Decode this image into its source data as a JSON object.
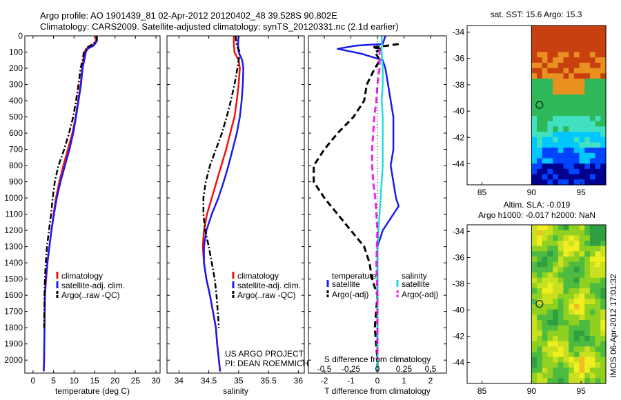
{
  "header": {
    "title_line1": "Argo profile: AO 1901439_81 02-Apr-2012 20120402_48 39.528S 90.802E",
    "title_line2": "Climatology: CARS2009. Satellite-adjusted climatology: synTS_20120331.nc (2.1d earlier)"
  },
  "project": {
    "line1": "US ARGO PROJECT",
    "line2": "PI: DEAN ROEMMICH"
  },
  "stamp": "IMOS 06-Apr-2012 17:01:32",
  "colors": {
    "red": "#ee1111",
    "blue": "#1a1aee",
    "black": "#000000",
    "cyan": "#22dddd",
    "magenta": "#ee22ee"
  },
  "chart_data": [
    {
      "type": "line",
      "id": "temperature",
      "xlabel": "temperature (deg C)",
      "ylabel": "depth",
      "xlim": [
        -2,
        31
      ],
      "ylim": [
        2080,
        0
      ],
      "xticks": [
        0,
        5,
        10,
        15,
        20,
        25,
        30
      ],
      "xtick_labels": [
        "0",
        "5",
        "10",
        "15",
        "20",
        "25",
        "30"
      ],
      "yticks": [
        0,
        100,
        200,
        300,
        400,
        500,
        600,
        700,
        800,
        900,
        1000,
        1100,
        1200,
        1300,
        1400,
        1500,
        1600,
        1700,
        1800,
        1900,
        2000
      ],
      "ytick_labels": [
        "0",
        "100",
        "200",
        "300",
        "400",
        "500",
        "600",
        "700",
        "800",
        "900",
        "1000",
        "1100",
        "1200",
        "1300",
        "1400",
        "1500",
        "1600",
        "1700",
        "1800",
        "1900",
        "2000"
      ],
      "legend": {
        "position": "bottom-right",
        "entries": [
          "climatology",
          "satellite-adj. clim.",
          "Argo(..raw -QC)"
        ]
      },
      "series": [
        {
          "name": "climatology",
          "color": "red",
          "dash": "solid",
          "x": [
            15.3,
            15.4,
            15.2,
            14.5,
            13.0,
            12.6,
            12.3,
            12.0,
            11.6,
            11.0,
            10.4,
            9.6,
            8.5,
            7.4,
            6.4,
            5.6,
            5.0,
            4.5,
            4.0,
            3.5,
            3.2,
            2.9,
            2.8,
            2.7,
            2.6
          ],
          "y": [
            0,
            20,
            40,
            60,
            80,
            100,
            150,
            200,
            300,
            400,
            500,
            600,
            700,
            800,
            900,
            1000,
            1100,
            1200,
            1300,
            1400,
            1500,
            1600,
            1800,
            2000,
            2070
          ]
        },
        {
          "name": "satellite-adj. clim.",
          "color": "blue",
          "dash": "solid",
          "x": [
            15.6,
            15.6,
            15.4,
            14.8,
            13.3,
            12.9,
            12.5,
            12.1,
            11.7,
            11.1,
            10.5,
            9.8,
            8.9,
            7.8,
            6.7,
            5.8,
            5.1,
            4.5,
            4.0,
            3.5,
            3.1,
            2.9,
            2.8,
            2.7,
            2.6
          ],
          "y": [
            0,
            20,
            40,
            60,
            80,
            100,
            150,
            200,
            300,
            400,
            500,
            600,
            700,
            800,
            900,
            1000,
            1100,
            1200,
            1300,
            1400,
            1500,
            1600,
            1800,
            2000,
            2070
          ]
        },
        {
          "name": "Argo(..raw -QC)",
          "color": "black",
          "dash": "dashdot",
          "x": [
            15.5,
            15.6,
            14.6,
            13.3,
            12.4,
            12.1,
            11.6,
            11.1,
            10.5,
            9.8,
            8.8,
            7.6,
            6.2,
            5.3,
            4.8,
            4.4,
            3.9,
            3.4,
            3.1,
            2.9,
            2.8,
            2.7
          ],
          "y": [
            0,
            30,
            50,
            70,
            100,
            150,
            200,
            300,
            400,
            500,
            600,
            700,
            800,
            900,
            1000,
            1100,
            1200,
            1300,
            1400,
            1500,
            1600,
            1800
          ]
        }
      ]
    },
    {
      "type": "line",
      "id": "salinity",
      "xlabel": "salinity",
      "ylabel": "depth",
      "xlim": [
        33.8,
        36.1
      ],
      "ylim": [
        2080,
        0
      ],
      "xticks": [
        34,
        34.5,
        35,
        35.5,
        36
      ],
      "xtick_labels": [
        "34",
        "34.5",
        "35",
        "35.5",
        "36"
      ],
      "legend": {
        "position": "bottom-right",
        "entries": [
          "climatology",
          "satellite-adj. clim.",
          "Argo(..raw -QC)"
        ]
      },
      "series": [
        {
          "name": "climatology",
          "color": "red",
          "dash": "solid",
          "x": [
            34.92,
            34.92,
            34.93,
            35.0,
            35.02,
            35.0,
            34.97,
            34.93,
            34.86,
            34.79,
            34.71,
            34.63,
            34.55,
            34.47,
            34.42,
            34.4,
            34.42,
            34.46,
            34.52,
            34.57,
            34.62,
            34.64,
            34.67,
            34.69
          ],
          "y": [
            0,
            50,
            100,
            150,
            200,
            300,
            400,
            500,
            600,
            700,
            800,
            900,
            1000,
            1100,
            1200,
            1300,
            1400,
            1500,
            1600,
            1700,
            1800,
            1900,
            2000,
            2070
          ]
        },
        {
          "name": "satellite-adj. clim.",
          "color": "blue",
          "dash": "solid",
          "x": [
            35.0,
            34.99,
            35.0,
            35.06,
            35.08,
            35.07,
            35.05,
            35.02,
            34.97,
            34.9,
            34.83,
            34.75,
            34.66,
            34.55,
            34.46,
            34.42,
            34.42,
            34.46,
            34.52,
            34.57,
            34.62,
            34.64,
            34.67,
            34.69
          ],
          "y": [
            0,
            50,
            100,
            150,
            200,
            300,
            400,
            500,
            600,
            700,
            800,
            900,
            1000,
            1100,
            1200,
            1300,
            1400,
            1500,
            1600,
            1700,
            1800,
            1900,
            2000,
            2070
          ]
        },
        {
          "name": "Argo(..raw -QC)",
          "color": "black",
          "dash": "dashdot",
          "x": [
            34.95,
            34.97,
            35.02,
            34.98,
            34.93,
            34.87,
            34.8,
            34.72,
            34.62,
            34.52,
            34.45,
            34.41,
            34.41,
            34.44,
            34.5,
            34.55,
            34.6,
            34.63,
            34.67
          ],
          "y": [
            0,
            60,
            100,
            200,
            300,
            400,
            500,
            600,
            700,
            800,
            900,
            1000,
            1100,
            1200,
            1300,
            1400,
            1500,
            1600,
            1800
          ]
        }
      ]
    },
    {
      "type": "line",
      "id": "differences",
      "xlabel": "T difference from climatology",
      "top_label": "S difference from climatology",
      "xlim": [
        -2.6,
        2.6
      ],
      "ylim": [
        2080,
        0
      ],
      "xticks": [
        -2,
        -1,
        0,
        1,
        2
      ],
      "xtick_labels": [
        "-2",
        "-1",
        "0",
        "1",
        "2"
      ],
      "top_ticks": [
        -0.5,
        -0.25,
        0,
        0.25,
        0.5
      ],
      "top_tick_labels": [
        "-0.5",
        "-0.25",
        "0",
        "0.25",
        "0.5"
      ],
      "legend": {
        "position": "bottom-center",
        "temperature_title": "temperature",
        "salinity_title": "salinity",
        "entries": [
          "satellite",
          "Argo(-adj)",
          "satellite",
          "Argo(-adj)"
        ]
      },
      "series": [
        {
          "name": "temperature satellite",
          "color": "blue",
          "dash": "solid",
          "x": [
            0.3,
            0.2,
            -0.8,
            -1.5,
            -0.6,
            0.2,
            0.3,
            0.4,
            0.5,
            0.6,
            0.6,
            0.6,
            0.5,
            0.6,
            0.7,
            0.8,
            0.6,
            0.2,
            0.0,
            0.0,
            0.0,
            0.0,
            0.0,
            0.0,
            0.0
          ],
          "y": [
            0,
            50,
            60,
            80,
            110,
            150,
            200,
            300,
            400,
            500,
            600,
            700,
            800,
            900,
            1000,
            1050,
            1100,
            1200,
            1300,
            1400,
            1500,
            1600,
            1800,
            2000,
            2070
          ]
        },
        {
          "name": "temperature Argo(-adj)",
          "color": "black",
          "dash": "dashed",
          "x": [
            0.8,
            0.4,
            -0.2,
            0.2,
            -0.1,
            0.1,
            -0.1,
            -0.4,
            -0.5,
            -0.9,
            -1.5,
            -2.0,
            -2.4,
            -2.4,
            -2.0,
            -1.5,
            -1.0,
            -0.5,
            -0.3,
            -0.2,
            0.0,
            -0.1,
            0.0,
            0.0
          ],
          "y": [
            50,
            60,
            70,
            80,
            100,
            150,
            200,
            300,
            400,
            500,
            600,
            700,
            800,
            900,
            1000,
            1100,
            1200,
            1300,
            1400,
            1500,
            1600,
            1800,
            2000,
            2070
          ]
        },
        {
          "name": "salinity satellite",
          "color": "cyan",
          "dash": "solid",
          "s_x": [
            0.04,
            0.04,
            0.05,
            0.05,
            0.04,
            0.05,
            0.05,
            0.05,
            0.05,
            0.04,
            0.03,
            0.02,
            0.01,
            0.0,
            0.0,
            0.0,
            0.0,
            0.0,
            0.0
          ],
          "y": [
            0,
            100,
            200,
            300,
            400,
            500,
            600,
            700,
            800,
            900,
            1000,
            1100,
            1200,
            1300,
            1400,
            1600,
            1800,
            2000,
            2070
          ]
        },
        {
          "name": "salinity Argo(-adj)",
          "color": "magenta",
          "dash": "dashed",
          "s_x": [
            0.02,
            0.02,
            0.0,
            -0.01,
            -0.03,
            -0.04,
            -0.05,
            -0.05,
            -0.04,
            -0.02,
            -0.01,
            0.0,
            -0.01,
            0.0,
            0.0,
            0.0
          ],
          "y": [
            80,
            200,
            300,
            400,
            500,
            600,
            700,
            800,
            900,
            1000,
            1100,
            1200,
            1400,
            1600,
            1800,
            2000
          ]
        }
      ]
    },
    {
      "type": "heatmap",
      "id": "sst_map",
      "title": "sat. SST: 15.6 Argo: 15.3",
      "xlim": [
        83.5,
        97.5
      ],
      "ylim": [
        -45.6,
        -33.5
      ],
      "xticks": [
        85,
        90,
        95
      ],
      "xtick_labels": [
        "85",
        "90",
        "95"
      ],
      "yticks": [
        -34,
        -36,
        -38,
        -40,
        -42,
        -44
      ],
      "ytick_labels": [
        "-34",
        "-36",
        "-38",
        "-40",
        "-42",
        "-44"
      ],
      "data_lon_range": [
        90,
        97.5
      ],
      "marker": {
        "lon": 90.802,
        "lat": -39.528
      },
      "colorscale": [
        "#00008f",
        "#0044ff",
        "#00c8ff",
        "#40e0c0",
        "#2fb85a",
        "#8fd020",
        "#d8d820",
        "#e89020",
        "#c84010"
      ]
    },
    {
      "type": "heatmap",
      "id": "sla_map",
      "title_line1": "Altim. SLA: -0.019",
      "title_line2": "Argo h1000: -0.017 h2000: NaN",
      "xlim": [
        83.5,
        97.5
      ],
      "ylim": [
        -45.6,
        -33.5
      ],
      "xticks": [
        85,
        90,
        95
      ],
      "xtick_labels": [
        "85",
        "90",
        "95"
      ],
      "yticks": [
        -34,
        -36,
        -38,
        -40,
        -42,
        -44
      ],
      "ytick_labels": [
        "-34",
        "-36",
        "-38",
        "-40",
        "-42",
        "-44"
      ],
      "data_lon_range": [
        90,
        97.5
      ],
      "marker": {
        "lon": 90.802,
        "lat": -39.528
      },
      "colorscale": [
        "#2fa040",
        "#4dbb40",
        "#8fd020",
        "#c8e020",
        "#eeee20",
        "#f0c020"
      ]
    }
  ]
}
